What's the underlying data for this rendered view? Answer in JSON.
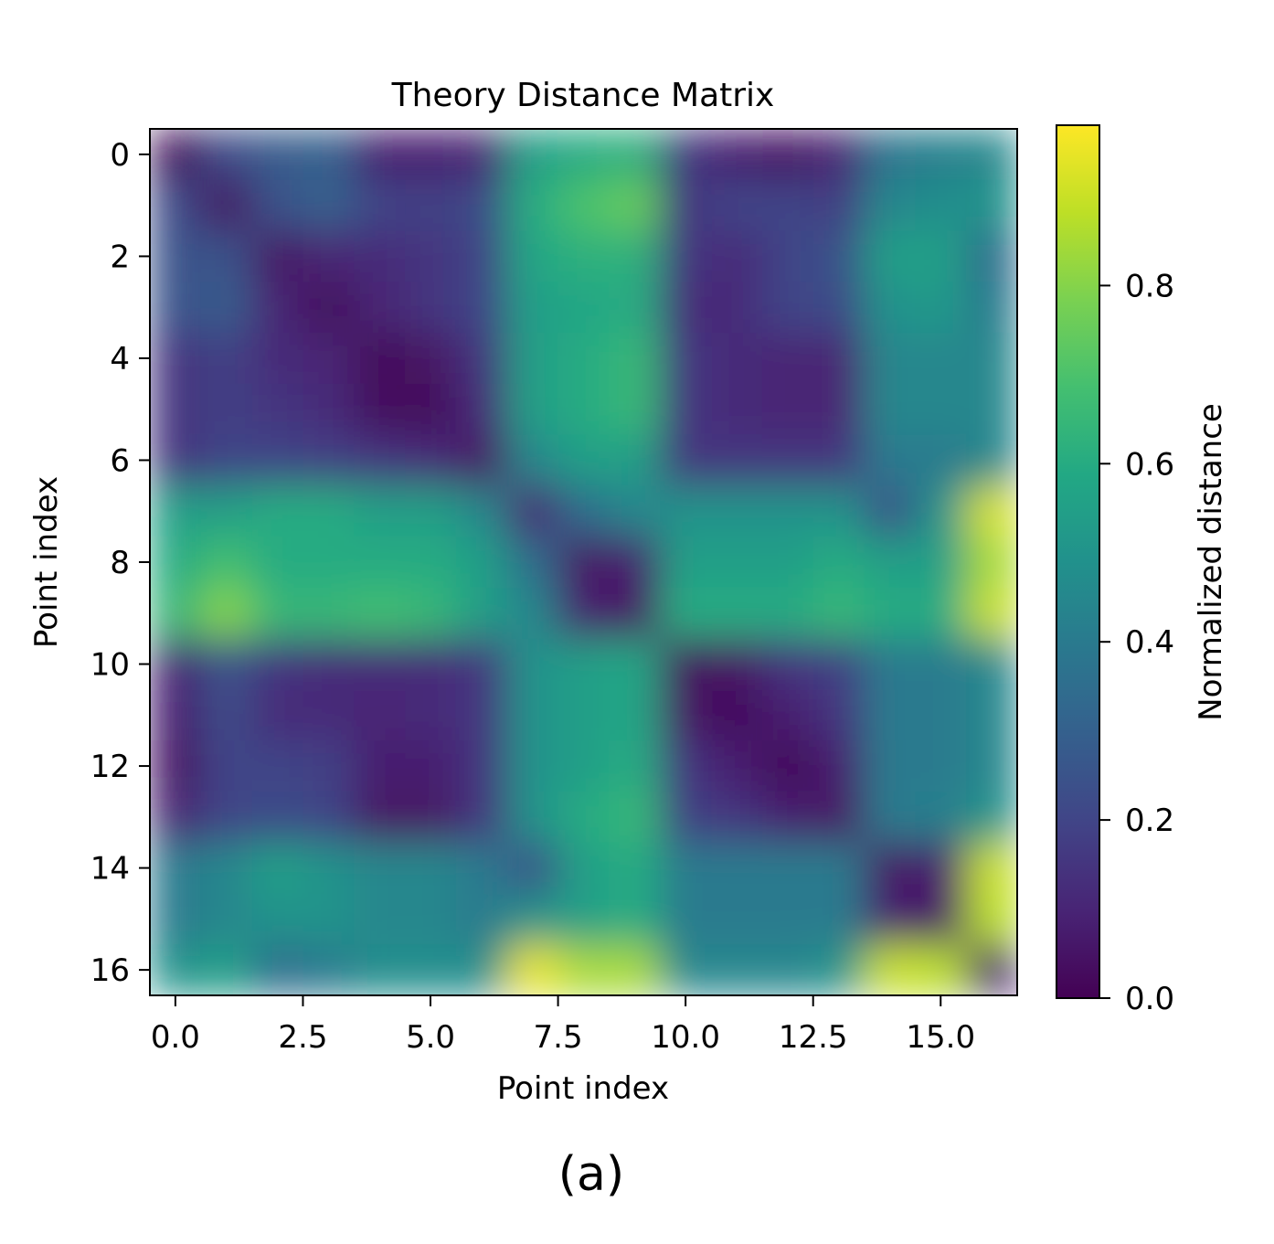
{
  "chart_data": {
    "type": "heatmap",
    "title": "Theory Distance Matrix",
    "xlabel": "Point index",
    "ylabel": "Point index",
    "x_ticks": [
      "0.0",
      "2.5",
      "5.0",
      "7.5",
      "10.0",
      "12.5",
      "15.0"
    ],
    "x_tick_values": [
      0,
      2.5,
      5,
      7.5,
      10,
      12.5,
      15
    ],
    "y_ticks": [
      "0",
      "2",
      "4",
      "6",
      "8",
      "10",
      "12",
      "14",
      "16"
    ],
    "y_tick_values": [
      0,
      2,
      4,
      6,
      8,
      10,
      12,
      14,
      16
    ],
    "xlim": [
      -0.5,
      16.5
    ],
    "ylim": [
      16.5,
      -0.5
    ],
    "colormap": "viridis",
    "interpolation": "smooth",
    "colorbar": {
      "label": "Normalized distance",
      "ticks": [
        "0.0",
        "0.2",
        "0.4",
        "0.6",
        "0.8"
      ],
      "tick_values": [
        0.0,
        0.2,
        0.4,
        0.6,
        0.8
      ],
      "range": [
        0.0,
        0.98
      ]
    },
    "values": [
      [
        0.02,
        0.22,
        0.28,
        0.3,
        0.08,
        0.08,
        0.1,
        0.55,
        0.6,
        0.62,
        0.15,
        0.08,
        0.05,
        0.1,
        0.38,
        0.42,
        0.45
      ],
      [
        0.22,
        0.05,
        0.25,
        0.3,
        0.2,
        0.18,
        0.22,
        0.6,
        0.7,
        0.75,
        0.15,
        0.2,
        0.2,
        0.18,
        0.45,
        0.48,
        0.5
      ],
      [
        0.25,
        0.25,
        0.05,
        0.1,
        0.12,
        0.15,
        0.2,
        0.58,
        0.62,
        0.62,
        0.15,
        0.12,
        0.2,
        0.25,
        0.55,
        0.55,
        0.35
      ],
      [
        0.25,
        0.28,
        0.1,
        0.03,
        0.1,
        0.15,
        0.2,
        0.55,
        0.58,
        0.6,
        0.12,
        0.12,
        0.2,
        0.22,
        0.5,
        0.52,
        0.4
      ],
      [
        0.15,
        0.18,
        0.12,
        0.1,
        0.02,
        0.05,
        0.15,
        0.55,
        0.6,
        0.65,
        0.15,
        0.12,
        0.1,
        0.1,
        0.45,
        0.45,
        0.45
      ],
      [
        0.15,
        0.18,
        0.15,
        0.12,
        0.03,
        0.02,
        0.12,
        0.55,
        0.6,
        0.65,
        0.15,
        0.12,
        0.1,
        0.1,
        0.45,
        0.45,
        0.45
      ],
      [
        0.15,
        0.2,
        0.2,
        0.18,
        0.15,
        0.12,
        0.05,
        0.45,
        0.55,
        0.55,
        0.15,
        0.15,
        0.15,
        0.15,
        0.4,
        0.4,
        0.45
      ],
      [
        0.55,
        0.55,
        0.6,
        0.6,
        0.55,
        0.55,
        0.45,
        0.1,
        0.35,
        0.45,
        0.5,
        0.5,
        0.5,
        0.5,
        0.25,
        0.5,
        0.92
      ],
      [
        0.6,
        0.68,
        0.6,
        0.6,
        0.6,
        0.6,
        0.55,
        0.35,
        0.05,
        0.08,
        0.55,
        0.55,
        0.55,
        0.6,
        0.55,
        0.55,
        0.85
      ],
      [
        0.65,
        0.8,
        0.65,
        0.65,
        0.68,
        0.65,
        0.55,
        0.45,
        0.08,
        0.05,
        0.6,
        0.6,
        0.6,
        0.65,
        0.6,
        0.6,
        0.9
      ],
      [
        0.1,
        0.25,
        0.15,
        0.12,
        0.12,
        0.12,
        0.15,
        0.5,
        0.55,
        0.58,
        0.03,
        0.05,
        0.15,
        0.18,
        0.4,
        0.4,
        0.45
      ],
      [
        0.08,
        0.22,
        0.12,
        0.12,
        0.1,
        0.12,
        0.15,
        0.5,
        0.55,
        0.58,
        0.05,
        0.03,
        0.08,
        0.15,
        0.4,
        0.4,
        0.45
      ],
      [
        0.05,
        0.2,
        0.2,
        0.18,
        0.08,
        0.08,
        0.15,
        0.5,
        0.55,
        0.6,
        0.15,
        0.08,
        0.02,
        0.08,
        0.4,
        0.4,
        0.45
      ],
      [
        0.1,
        0.2,
        0.22,
        0.2,
        0.05,
        0.05,
        0.15,
        0.5,
        0.6,
        0.65,
        0.18,
        0.15,
        0.08,
        0.05,
        0.4,
        0.42,
        0.5
      ],
      [
        0.4,
        0.45,
        0.55,
        0.5,
        0.45,
        0.45,
        0.4,
        0.25,
        0.55,
        0.6,
        0.4,
        0.4,
        0.4,
        0.4,
        0.05,
        0.08,
        0.9
      ],
      [
        0.4,
        0.45,
        0.5,
        0.5,
        0.45,
        0.45,
        0.4,
        0.5,
        0.55,
        0.6,
        0.4,
        0.4,
        0.4,
        0.4,
        0.08,
        0.05,
        0.88
      ],
      [
        0.5,
        0.55,
        0.35,
        0.4,
        0.48,
        0.48,
        0.48,
        0.95,
        0.85,
        0.85,
        0.45,
        0.45,
        0.45,
        0.5,
        0.9,
        0.88,
        0.05
      ]
    ]
  },
  "caption": "(a)"
}
